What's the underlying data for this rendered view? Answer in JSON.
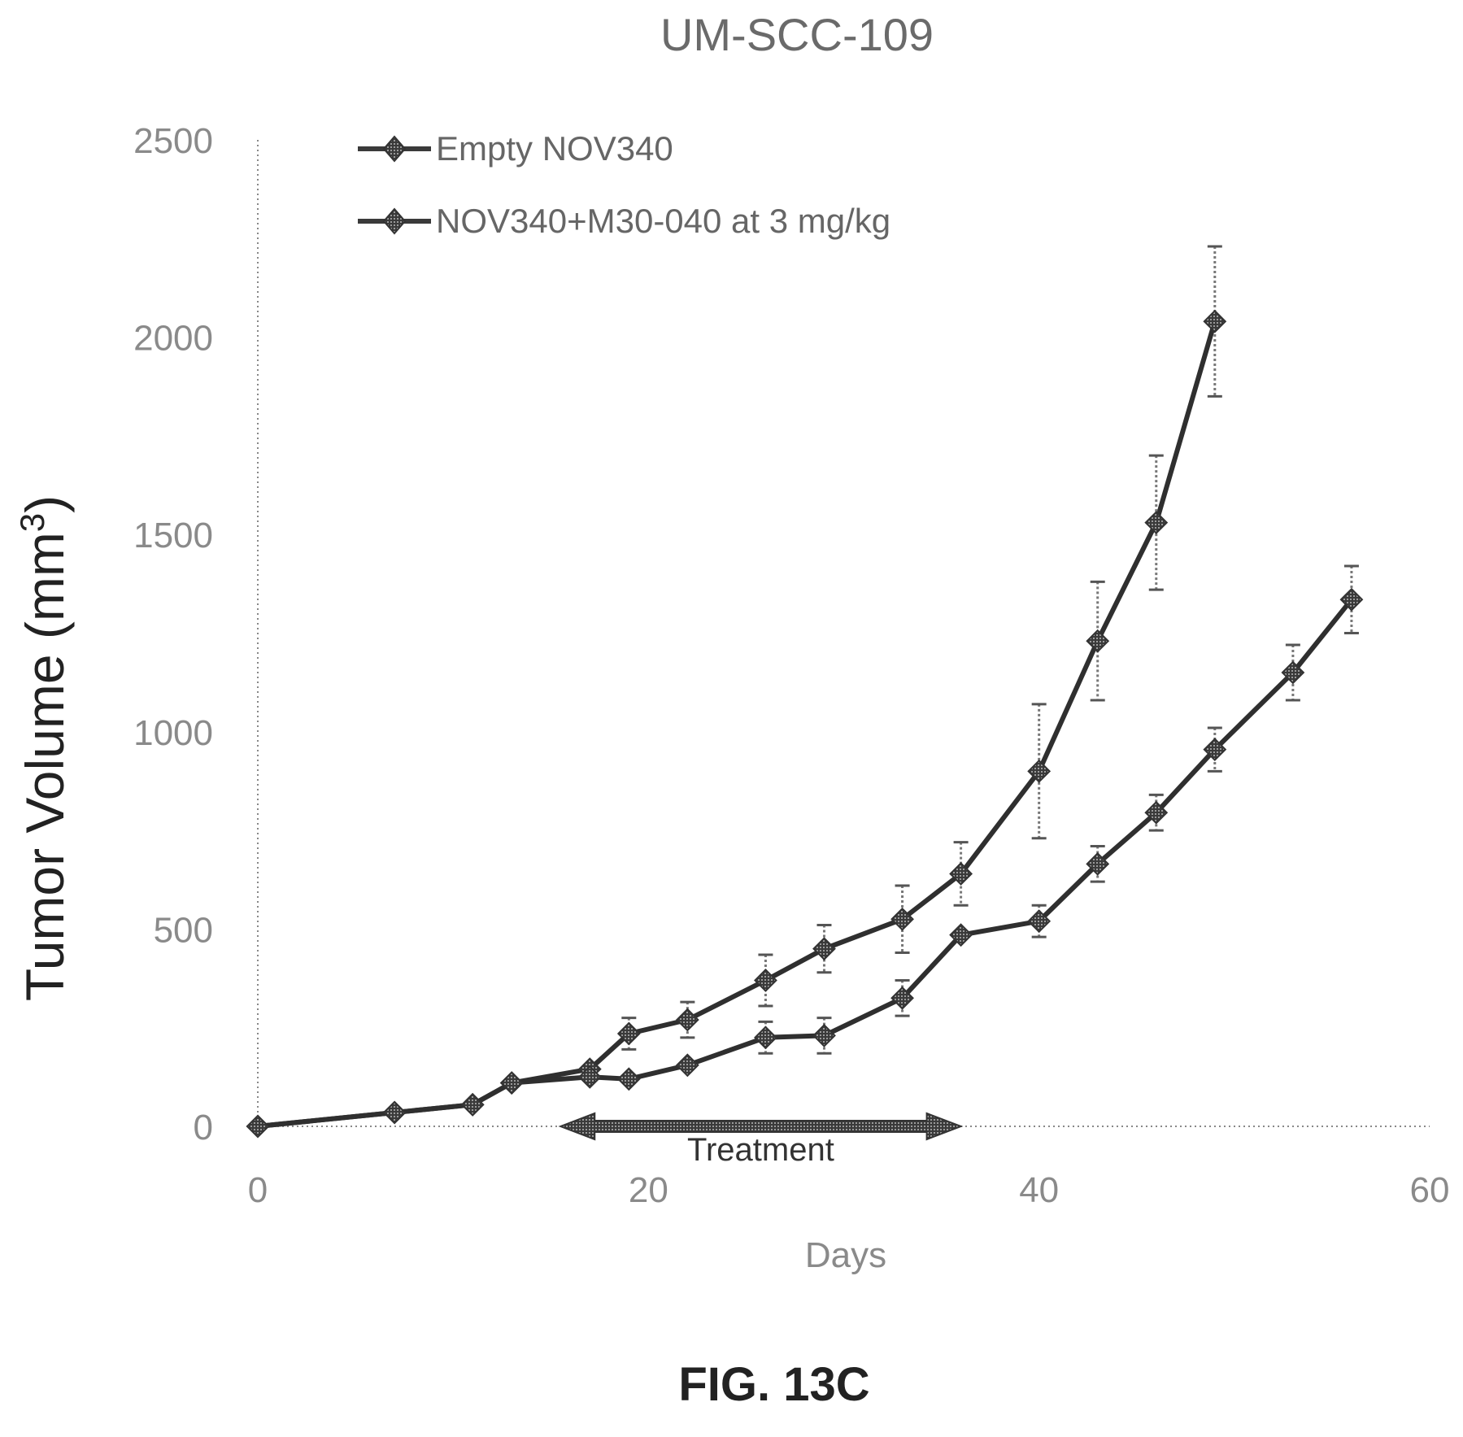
{
  "chart_data": {
    "type": "line",
    "title": "UM-SCC-109",
    "xlabel": "Days",
    "ylabel": "Tumor Volume (mm",
    "ylabel_superscript": "3",
    "ylabel_close": ")",
    "xlim": [
      0,
      60
    ],
    "ylim": [
      0,
      2500
    ],
    "x_ticks": [
      0,
      20,
      40,
      60
    ],
    "y_ticks": [
      0,
      500,
      1000,
      1500,
      2000,
      2500
    ],
    "grid": false,
    "legend_position": "top-left",
    "series": [
      {
        "name": "Empty NOV340",
        "marker": "diamond",
        "x": [
          0,
          7,
          11,
          13,
          17,
          19,
          22,
          26,
          29,
          33,
          36,
          40,
          43,
          46,
          49
        ],
        "y": [
          0,
          35,
          55,
          110,
          145,
          235,
          270,
          370,
          450,
          525,
          640,
          900,
          1230,
          1530,
          2040
        ],
        "error": [
          0,
          0,
          0,
          0,
          0,
          40,
          45,
          65,
          60,
          85,
          80,
          170,
          150,
          170,
          190
        ]
      },
      {
        "name": "NOV340+M30-040 at 3 mg/kg",
        "marker": "diamond",
        "x": [
          0,
          7,
          11,
          13,
          17,
          19,
          22,
          26,
          29,
          33,
          36,
          40,
          43,
          46,
          49,
          53,
          56
        ],
        "y": [
          0,
          35,
          55,
          110,
          125,
          120,
          155,
          225,
          230,
          325,
          485,
          520,
          665,
          795,
          955,
          1150,
          1335
        ],
        "error": [
          0,
          0,
          0,
          0,
          0,
          0,
          0,
          40,
          45,
          45,
          0,
          40,
          45,
          45,
          55,
          70,
          85
        ]
      }
    ],
    "annotations": [
      {
        "text": "Treatment",
        "x_start": 15.5,
        "x_end": 36
      }
    ]
  },
  "figure_caption": "FIG. 13C"
}
